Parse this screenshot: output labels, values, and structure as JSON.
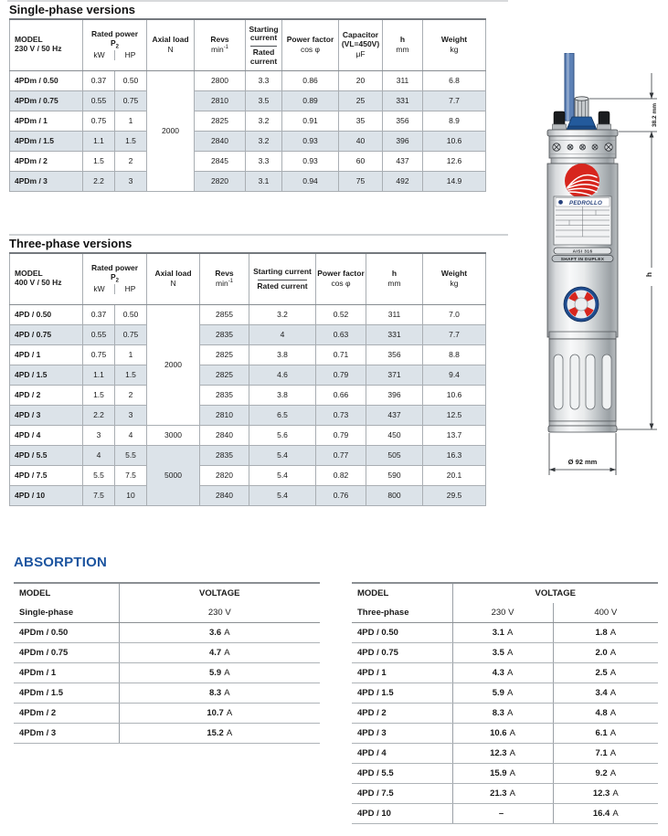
{
  "single_phase": {
    "title": "Single-phase versions",
    "header": {
      "model": "MODEL",
      "voltage": "230 V / 50 Hz",
      "rated_power": "Rated power",
      "p2_base": "P",
      "p2_sub": "2",
      "axial_load": "Axial load",
      "revs": "Revs",
      "starting_current": "Starting current",
      "rated_current": "Rated current",
      "power_factor": "Power factor",
      "capacitor": "Capacitor",
      "capacitor_note": "(VL=450V)",
      "h": "h",
      "weight": "Weight",
      "unit_kw": "kW",
      "unit_hp": "HP",
      "unit_n": "N",
      "unit_min_base": "min",
      "unit_min_sup": "-1",
      "unit_cos": "cos φ",
      "unit_uf": "μF",
      "unit_mm": "mm",
      "unit_kg": "kg"
    },
    "axial_groups": [
      {
        "value": "2000",
        "rows": 6
      }
    ],
    "rows": [
      {
        "model": "4PDm / 0.50",
        "kw": "0.37",
        "hp": "0.50",
        "revs": "2800",
        "start": "3.3",
        "cos": "0.86",
        "cap": "20",
        "h": "311",
        "kg": "6.8"
      },
      {
        "model": "4PDm / 0.75",
        "kw": "0.55",
        "hp": "0.75",
        "revs": "2810",
        "start": "3.5",
        "cos": "0.89",
        "cap": "25",
        "h": "331",
        "kg": "7.7"
      },
      {
        "model": "4PDm / 1",
        "kw": "0.75",
        "hp": "1",
        "revs": "2825",
        "start": "3.2",
        "cos": "0.91",
        "cap": "35",
        "h": "356",
        "kg": "8.9"
      },
      {
        "model": "4PDm / 1.5",
        "kw": "1.1",
        "hp": "1.5",
        "revs": "2840",
        "start": "3.2",
        "cos": "0.93",
        "cap": "40",
        "h": "396",
        "kg": "10.6"
      },
      {
        "model": "4PDm / 2",
        "kw": "1.5",
        "hp": "2",
        "revs": "2845",
        "start": "3.3",
        "cos": "0.93",
        "cap": "60",
        "h": "437",
        "kg": "12.6"
      },
      {
        "model": "4PDm / 3",
        "kw": "2.2",
        "hp": "3",
        "revs": "2820",
        "start": "3.1",
        "cos": "0.94",
        "cap": "75",
        "h": "492",
        "kg": "14.9"
      }
    ]
  },
  "three_phase": {
    "title": "Three-phase versions",
    "header": {
      "model": "MODEL",
      "voltage": "400 V / 50 Hz",
      "rated_power": "Rated power",
      "p2_base": "P",
      "p2_sub": "2",
      "axial_load": "Axial load",
      "revs": "Revs",
      "starting_current": "Starting current",
      "rated_current": "Rated current",
      "power_factor": "Power factor",
      "h": "h",
      "weight": "Weight",
      "unit_kw": "kW",
      "unit_hp": "HP",
      "unit_n": "N",
      "unit_min_base": "min",
      "unit_min_sup": "-1",
      "unit_cos": "cos φ",
      "unit_mm": "mm",
      "unit_kg": "kg"
    },
    "axial_groups": [
      {
        "value": "2000",
        "rows": 6
      },
      {
        "value": "3000",
        "rows": 1
      },
      {
        "value": "5000",
        "rows": 3
      }
    ],
    "rows": [
      {
        "model": "4PD / 0.50",
        "kw": "0.37",
        "hp": "0.50",
        "revs": "2855",
        "start": "3.2",
        "cos": "0.52",
        "h": "311",
        "kg": "7.0"
      },
      {
        "model": "4PD / 0.75",
        "kw": "0.55",
        "hp": "0.75",
        "revs": "2835",
        "start": "4",
        "cos": "0.63",
        "h": "331",
        "kg": "7.7"
      },
      {
        "model": "4PD / 1",
        "kw": "0.75",
        "hp": "1",
        "revs": "2825",
        "start": "3.8",
        "cos": "0.71",
        "h": "356",
        "kg": "8.8"
      },
      {
        "model": "4PD / 1.5",
        "kw": "1.1",
        "hp": "1.5",
        "revs": "2825",
        "start": "4.6",
        "cos": "0.79",
        "h": "371",
        "kg": "9.4"
      },
      {
        "model": "4PD / 2",
        "kw": "1.5",
        "hp": "2",
        "revs": "2835",
        "start": "3.8",
        "cos": "0.66",
        "h": "396",
        "kg": "10.6"
      },
      {
        "model": "4PD / 3",
        "kw": "2.2",
        "hp": "3",
        "revs": "2810",
        "start": "6.5",
        "cos": "0.73",
        "h": "437",
        "kg": "12.5"
      },
      {
        "model": "4PD / 4",
        "kw": "3",
        "hp": "4",
        "revs": "2840",
        "start": "5.6",
        "cos": "0.79",
        "h": "450",
        "kg": "13.7"
      },
      {
        "model": "4PD / 5.5",
        "kw": "4",
        "hp": "5.5",
        "revs": "2835",
        "start": "5.4",
        "cos": "0.77",
        "h": "505",
        "kg": "16.3"
      },
      {
        "model": "4PD / 7.5",
        "kw": "5.5",
        "hp": "7.5",
        "revs": "2820",
        "start": "5.4",
        "cos": "0.82",
        "h": "590",
        "kg": "20.1"
      },
      {
        "model": "4PD / 10",
        "kw": "7.5",
        "hp": "10",
        "revs": "2840",
        "start": "5.4",
        "cos": "0.76",
        "h": "800",
        "kg": "29.5"
      }
    ]
  },
  "absorption": {
    "title": "ABSORPTION",
    "single": {
      "model_header": "MODEL",
      "voltage_header": "VOLTAGE",
      "phase": "Single-phase",
      "voltage": "230 V",
      "rows": [
        {
          "model": "4PDm / 0.50",
          "value": "3.6",
          "unit": "A"
        },
        {
          "model": "4PDm / 0.75",
          "value": "4.7",
          "unit": "A"
        },
        {
          "model": "4PDm / 1",
          "value": "5.9",
          "unit": "A"
        },
        {
          "model": "4PDm / 1.5",
          "value": "8.3",
          "unit": "A"
        },
        {
          "model": "4PDm / 2",
          "value": "10.7",
          "unit": "A"
        },
        {
          "model": "4PDm / 3",
          "value": "15.2",
          "unit": "A"
        }
      ]
    },
    "three": {
      "model_header": "MODEL",
      "voltage_header": "VOLTAGE",
      "phase": "Three-phase",
      "v230": "230 V",
      "v400": "400 V",
      "rows": [
        {
          "model": "4PD / 0.50",
          "v230": "3.1",
          "u230": "A",
          "v400": "1.8",
          "u400": "A"
        },
        {
          "model": "4PD / 0.75",
          "v230": "3.5",
          "u230": "A",
          "v400": "2.0",
          "u400": "A"
        },
        {
          "model": "4PD / 1",
          "v230": "4.3",
          "u230": "A",
          "v400": "2.5",
          "u400": "A"
        },
        {
          "model": "4PD / 1.5",
          "v230": "5.9",
          "u230": "A",
          "v400": "3.4",
          "u400": "A"
        },
        {
          "model": "4PD / 2",
          "v230": "8.3",
          "u230": "A",
          "v400": "4.8",
          "u400": "A"
        },
        {
          "model": "4PD / 3",
          "v230": "10.6",
          "u230": "A",
          "v400": "6.1",
          "u400": "A"
        },
        {
          "model": "4PD / 4",
          "v230": "12.3",
          "u230": "A",
          "v400": "7.1",
          "u400": "A"
        },
        {
          "model": "4PD / 5.5",
          "v230": "15.9",
          "u230": "A",
          "v400": "9.2",
          "u400": "A"
        },
        {
          "model": "4PD / 7.5",
          "v230": "21.3",
          "u230": "A",
          "v400": "12.3",
          "u400": "A"
        },
        {
          "model": "4PD / 10",
          "v230": "–",
          "u230": "",
          "v400": "16.4",
          "u400": "A"
        }
      ]
    }
  },
  "drawing": {
    "brand": "PEDROLLO",
    "badge_material": "AISI 316",
    "badge_shaft": "SHAFT IN DUPLEX",
    "dim_shaft": "38.2 mm",
    "dim_height": "h",
    "dim_diameter": "Ø 92 mm"
  },
  "colors": {
    "row_shade": "#dce3e9",
    "accent_blue": "#1d55a0",
    "logo_red": "#d7261e",
    "cable_blue": "#5d81b6"
  }
}
